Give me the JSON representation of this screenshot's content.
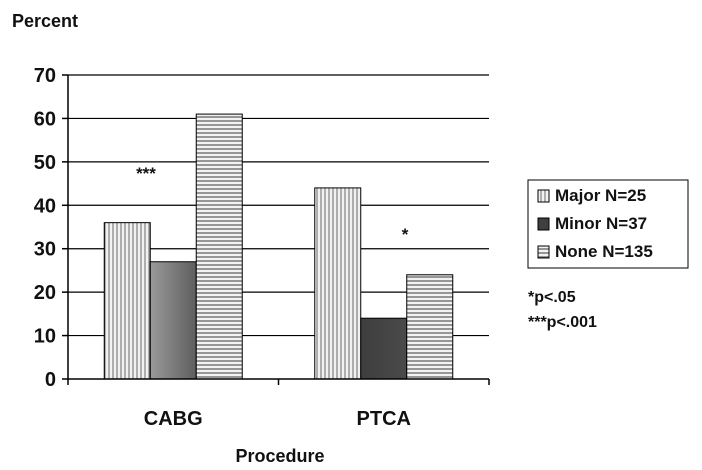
{
  "chart_data": {
    "type": "bar",
    "ylabel": "Percent",
    "xlabel": "Procedure",
    "categories": [
      "CABG",
      "PTCA"
    ],
    "yticks": [
      0,
      10,
      20,
      30,
      40,
      50,
      60,
      70
    ],
    "ylim": [
      0,
      70
    ],
    "grid": true,
    "legend_position": "right",
    "series": [
      {
        "name": "Major N=25",
        "values": [
          36,
          44
        ],
        "pattern": "vertical-stripes",
        "color": "#cfcfcf"
      },
      {
        "name": "Minor N=37",
        "values": [
          27,
          14
        ],
        "pattern": "solid-gradient",
        "color": "#555555"
      },
      {
        "name": "None N=135",
        "values": [
          61,
          24
        ],
        "pattern": "horizontal-stripes",
        "color": "#d8d8d8"
      }
    ],
    "annotations": [
      {
        "category": "CABG",
        "text": "***"
      },
      {
        "category": "PTCA",
        "text": "*"
      }
    ],
    "notes": [
      "*p<.05",
      "***p<.001"
    ]
  }
}
